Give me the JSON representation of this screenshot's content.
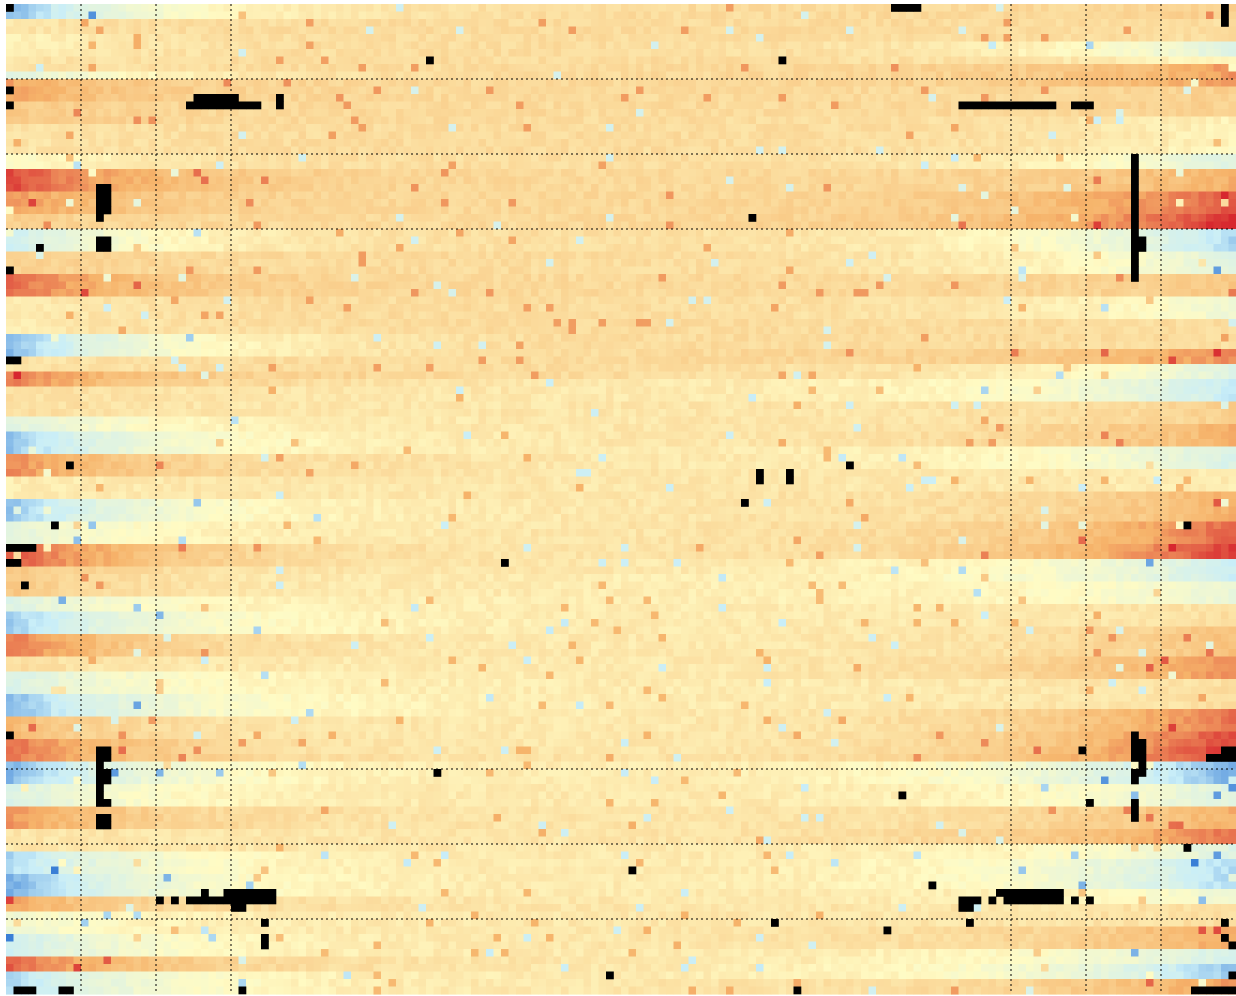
{
  "chart_data": {
    "type": "heatmap",
    "title": "",
    "xlabel": "",
    "ylabel": "",
    "grid": true,
    "legend": "none",
    "colormap": {
      "name": "diverging",
      "low": "#3a7fd6",
      "low_mid": "#c9eef8",
      "mid": "#fffbc4",
      "high_mid": "#f6b36a",
      "high": "#d7282f",
      "missing": "#000000"
    },
    "guide_line_color": "#000000",
    "columns": 164,
    "rows": 132,
    "value_range": [
      -1,
      1
    ],
    "vertical_guides_columns": [
      10,
      20,
      30,
      134,
      144,
      154
    ],
    "horizontal_guides_rows": [
      10,
      20,
      30,
      102,
      112,
      122
    ],
    "horizontal_bands": [
      {
        "rows": [
          0,
          1
        ],
        "value": -0.75
      },
      {
        "rows": [
          2,
          3
        ],
        "value": 0.15
      },
      {
        "rows": [
          4,
          6
        ],
        "value": 0.05
      },
      {
        "rows": [
          7,
          8
        ],
        "value": 0.15
      },
      {
        "rows": [
          9,
          9
        ],
        "value": -0.3
      },
      {
        "rows": [
          10,
          12
        ],
        "value": 0.55
      },
      {
        "rows": [
          13,
          15
        ],
        "value": 0.35
      },
      {
        "rows": [
          16,
          19
        ],
        "value": 0.15
      },
      {
        "rows": [
          20,
          21
        ],
        "value": -0.05
      },
      {
        "rows": [
          22,
          24
        ],
        "value": 0.9
      },
      {
        "rows": [
          25,
          27
        ],
        "value": 0.6
      },
      {
        "rows": [
          28,
          29
        ],
        "value": 0.3
      },
      {
        "rows": [
          30,
          32
        ],
        "value": -0.45
      },
      {
        "rows": [
          33,
          35
        ],
        "value": 0.3
      },
      {
        "rows": [
          36,
          38
        ],
        "value": 0.75
      },
      {
        "rows": [
          39,
          43
        ],
        "value": 0.1
      },
      {
        "rows": [
          44,
          46
        ],
        "value": -0.75
      },
      {
        "rows": [
          47,
          48
        ],
        "value": 0.15
      },
      {
        "rows": [
          49,
          50
        ],
        "value": 0.7
      },
      {
        "rows": [
          51,
          54
        ],
        "value": 0.2
      },
      {
        "rows": [
          55,
          56
        ],
        "value": -0.3
      },
      {
        "rows": [
          57,
          59
        ],
        "value": -0.7
      },
      {
        "rows": [
          60,
          62
        ],
        "value": 0.65
      },
      {
        "rows": [
          63,
          65
        ],
        "value": 0.1
      },
      {
        "rows": [
          66,
          68
        ],
        "value": -0.7
      },
      {
        "rows": [
          69,
          71
        ],
        "value": -0.25
      },
      {
        "rows": [
          72,
          74
        ],
        "value": 0.85
      },
      {
        "rows": [
          75,
          78
        ],
        "value": 0.35
      },
      {
        "rows": [
          79,
          80
        ],
        "value": -0.3
      },
      {
        "rows": [
          81,
          83
        ],
        "value": -0.65
      },
      {
        "rows": [
          84,
          86
        ],
        "value": 0.7
      },
      {
        "rows": [
          87,
          88
        ],
        "value": 0.2
      },
      {
        "rows": [
          89,
          91
        ],
        "value": -0.35
      },
      {
        "rows": [
          92,
          94
        ],
        "value": -0.75
      },
      {
        "rows": [
          95,
          97
        ],
        "value": 0.45
      },
      {
        "rows": [
          98,
          100
        ],
        "value": 0.75
      },
      {
        "rows": [
          101,
          103
        ],
        "value": -0.75
      },
      {
        "rows": [
          104,
          106
        ],
        "value": -0.35
      },
      {
        "rows": [
          107,
          109
        ],
        "value": 0.6
      },
      {
        "rows": [
          110,
          112
        ],
        "value": 0.15
      },
      {
        "rows": [
          113,
          115
        ],
        "value": -0.6
      },
      {
        "rows": [
          116,
          118
        ],
        "value": -0.8
      },
      {
        "rows": [
          119,
          120
        ],
        "value": 0.55
      },
      {
        "rows": [
          121,
          123
        ],
        "value": -0.15
      },
      {
        "rows": [
          124,
          126
        ],
        "value": -0.45
      },
      {
        "rows": [
          127,
          128
        ],
        "value": 0.8
      },
      {
        "rows": [
          129,
          131
        ],
        "value": -0.6
      }
    ],
    "right_edge_bands": [
      {
        "rows": [
          0,
          1
        ],
        "value": 0.3
      },
      {
        "rows": [
          2,
          4
        ],
        "value": 0.2
      },
      {
        "rows": [
          5,
          6
        ],
        "value": -0.3
      },
      {
        "rows": [
          8,
          10
        ],
        "value": 0.6
      },
      {
        "rows": [
          11,
          14
        ],
        "value": 0.3
      },
      {
        "rows": [
          15,
          18
        ],
        "value": 0.05
      },
      {
        "rows": [
          20,
          21
        ],
        "value": -0.3
      },
      {
        "rows": [
          22,
          24
        ],
        "value": 0.5
      },
      {
        "rows": [
          25,
          27
        ],
        "value": 0.85
      },
      {
        "rows": [
          28,
          29
        ],
        "value": 1.0
      },
      {
        "rows": [
          30,
          32
        ],
        "value": -0.6
      },
      {
        "rows": [
          33,
          35
        ],
        "value": -0.3
      },
      {
        "rows": [
          36,
          38
        ],
        "value": 0.35
      },
      {
        "rows": [
          39,
          41
        ],
        "value": -0.15
      },
      {
        "rows": [
          42,
          45
        ],
        "value": 0.2
      },
      {
        "rows": [
          46,
          47
        ],
        "value": 0.65
      },
      {
        "rows": [
          48,
          49
        ],
        "value": -0.3
      },
      {
        "rows": [
          50,
          52
        ],
        "value": -0.5
      },
      {
        "rows": [
          53,
          55
        ],
        "value": 0.3
      },
      {
        "rows": [
          56,
          58
        ],
        "value": 0.5
      },
      {
        "rows": [
          59,
          61
        ],
        "value": -0.35
      },
      {
        "rows": [
          62,
          64
        ],
        "value": 0.1
      },
      {
        "rows": [
          65,
          68
        ],
        "value": 0.5
      },
      {
        "rows": [
          69,
          71
        ],
        "value": 0.8
      },
      {
        "rows": [
          72,
          73
        ],
        "value": 0.95
      },
      {
        "rows": [
          74,
          76
        ],
        "value": -0.45
      },
      {
        "rows": [
          77,
          79
        ],
        "value": -0.2
      },
      {
        "rows": [
          80,
          82
        ],
        "value": 0.2
      },
      {
        "rows": [
          83,
          86
        ],
        "value": 0.4
      },
      {
        "rows": [
          87,
          89
        ],
        "value": 0.65
      },
      {
        "rows": [
          90,
          93
        ],
        "value": 0.2
      },
      {
        "rows": [
          94,
          96
        ],
        "value": 0.75
      },
      {
        "rows": [
          97,
          98
        ],
        "value": 0.9
      },
      {
        "rows": [
          99,
          100
        ],
        "value": 1.0
      },
      {
        "rows": [
          101,
          103
        ],
        "value": -0.8
      },
      {
        "rows": [
          104,
          106
        ],
        "value": -0.3
      },
      {
        "rows": [
          107,
          109
        ],
        "value": 0.5
      },
      {
        "rows": [
          110,
          111
        ],
        "value": 0.75
      },
      {
        "rows": [
          112,
          113
        ],
        "value": -0.3
      },
      {
        "rows": [
          114,
          117
        ],
        "value": -0.6
      },
      {
        "rows": [
          118,
          119
        ],
        "value": -0.15
      },
      {
        "rows": [
          120,
          122
        ],
        "value": 0.2
      },
      {
        "rows": [
          123,
          125
        ],
        "value": 0.55
      },
      {
        "rows": [
          126,
          127
        ],
        "value": -0.4
      },
      {
        "rows": [
          128,
          129
        ],
        "value": -0.7
      },
      {
        "rows": [
          130,
          131
        ],
        "value": 0.6
      }
    ],
    "missing_cells": [
      [
        0,
        0
      ],
      [
        0,
        118
      ],
      [
        0,
        119
      ],
      [
        0,
        120
      ],
      [
        0,
        121
      ],
      [
        0,
        162
      ],
      [
        1,
        162
      ],
      [
        2,
        162
      ],
      [
        7,
        56
      ],
      [
        7,
        103
      ],
      [
        11,
        0
      ],
      [
        12,
        25
      ],
      [
        12,
        26
      ],
      [
        12,
        27
      ],
      [
        12,
        28
      ],
      [
        12,
        29
      ],
      [
        12,
        30
      ],
      [
        12,
        36
      ],
      [
        13,
        0
      ],
      [
        13,
        24
      ],
      [
        13,
        25
      ],
      [
        13,
        26
      ],
      [
        13,
        27
      ],
      [
        13,
        28
      ],
      [
        13,
        29
      ],
      [
        13,
        30
      ],
      [
        13,
        31
      ],
      [
        13,
        32
      ],
      [
        13,
        33
      ],
      [
        13,
        36
      ],
      [
        13,
        127
      ],
      [
        13,
        128
      ],
      [
        13,
        129
      ],
      [
        13,
        130
      ],
      [
        13,
        131
      ],
      [
        13,
        132
      ],
      [
        13,
        133
      ],
      [
        13,
        134
      ],
      [
        13,
        135
      ],
      [
        13,
        136
      ],
      [
        13,
        137
      ],
      [
        13,
        138
      ],
      [
        13,
        139
      ],
      [
        13,
        142
      ],
      [
        13,
        143
      ],
      [
        13,
        144
      ],
      [
        20,
        150
      ],
      [
        21,
        150
      ],
      [
        22,
        150
      ],
      [
        23,
        150
      ],
      [
        24,
        150
      ],
      [
        24,
        12
      ],
      [
        24,
        13
      ],
      [
        25,
        12
      ],
      [
        25,
        13
      ],
      [
        25,
        150
      ],
      [
        26,
        12
      ],
      [
        26,
        13
      ],
      [
        26,
        150
      ],
      [
        27,
        12
      ],
      [
        27,
        13
      ],
      [
        27,
        150
      ],
      [
        28,
        12
      ],
      [
        28,
        99
      ],
      [
        28,
        150
      ],
      [
        29,
        150
      ],
      [
        30,
        150
      ],
      [
        31,
        12
      ],
      [
        31,
        13
      ],
      [
        31,
        150
      ],
      [
        31,
        151
      ],
      [
        32,
        4
      ],
      [
        32,
        12
      ],
      [
        32,
        13
      ],
      [
        32,
        150
      ],
      [
        32,
        151
      ],
      [
        33,
        150
      ],
      [
        34,
        150
      ],
      [
        35,
        0
      ],
      [
        35,
        150
      ],
      [
        36,
        150
      ],
      [
        47,
        0
      ],
      [
        47,
        1
      ],
      [
        61,
        8
      ],
      [
        61,
        112
      ],
      [
        62,
        100
      ],
      [
        62,
        104
      ],
      [
        63,
        100
      ],
      [
        63,
        104
      ],
      [
        66,
        98
      ],
      [
        69,
        6
      ],
      [
        69,
        157
      ],
      [
        72,
        0
      ],
      [
        72,
        1
      ],
      [
        72,
        2
      ],
      [
        72,
        3
      ],
      [
        74,
        0
      ],
      [
        74,
        1
      ],
      [
        74,
        66
      ],
      [
        77,
        2
      ],
      [
        97,
        0
      ],
      [
        97,
        150
      ],
      [
        98,
        150
      ],
      [
        98,
        151
      ],
      [
        99,
        12
      ],
      [
        99,
        13
      ],
      [
        99,
        143
      ],
      [
        99,
        150
      ],
      [
        99,
        151
      ],
      [
        99,
        162
      ],
      [
        99,
        163
      ],
      [
        100,
        12
      ],
      [
        100,
        13
      ],
      [
        100,
        150
      ],
      [
        100,
        151
      ],
      [
        100,
        160
      ],
      [
        100,
        161
      ],
      [
        100,
        162
      ],
      [
        100,
        163
      ],
      [
        101,
        12
      ],
      [
        101,
        151
      ],
      [
        102,
        12
      ],
      [
        102,
        13
      ],
      [
        102,
        57
      ],
      [
        102,
        150
      ],
      [
        102,
        151
      ],
      [
        103,
        12
      ],
      [
        103,
        13
      ],
      [
        103,
        150
      ],
      [
        104,
        12
      ],
      [
        105,
        12
      ],
      [
        105,
        119
      ],
      [
        106,
        12
      ],
      [
        106,
        13
      ],
      [
        106,
        144
      ],
      [
        106,
        150
      ],
      [
        107,
        150
      ],
      [
        108,
        12
      ],
      [
        108,
        13
      ],
      [
        108,
        150
      ],
      [
        109,
        12
      ],
      [
        109,
        13
      ],
      [
        112,
        157
      ],
      [
        115,
        83
      ],
      [
        117,
        123
      ],
      [
        118,
        26
      ],
      [
        118,
        29
      ],
      [
        118,
        30
      ],
      [
        118,
        31
      ],
      [
        118,
        32
      ],
      [
        118,
        33
      ],
      [
        118,
        34
      ],
      [
        118,
        35
      ],
      [
        118,
        132
      ],
      [
        118,
        133
      ],
      [
        118,
        134
      ],
      [
        118,
        135
      ],
      [
        118,
        136
      ],
      [
        118,
        137
      ],
      [
        118,
        138
      ],
      [
        118,
        139
      ],
      [
        118,
        140
      ],
      [
        119,
        20
      ],
      [
        119,
        22
      ],
      [
        119,
        24
      ],
      [
        119,
        25
      ],
      [
        119,
        26
      ],
      [
        119,
        27
      ],
      [
        119,
        28
      ],
      [
        119,
        29
      ],
      [
        119,
        30
      ],
      [
        119,
        31
      ],
      [
        119,
        32
      ],
      [
        119,
        33
      ],
      [
        119,
        34
      ],
      [
        119,
        35
      ],
      [
        119,
        127
      ],
      [
        119,
        128
      ],
      [
        119,
        129
      ],
      [
        119,
        131
      ],
      [
        119,
        133
      ],
      [
        119,
        134
      ],
      [
        119,
        135
      ],
      [
        119,
        136
      ],
      [
        119,
        137
      ],
      [
        119,
        138
      ],
      [
        119,
        139
      ],
      [
        119,
        140
      ],
      [
        119,
        142
      ],
      [
        119,
        144
      ],
      [
        120,
        30
      ],
      [
        120,
        31
      ],
      [
        120,
        127
      ],
      [
        120,
        128
      ],
      [
        122,
        34
      ],
      [
        122,
        102
      ],
      [
        122,
        128
      ],
      [
        122,
        162
      ],
      [
        123,
        117
      ],
      [
        124,
        34
      ],
      [
        124,
        162
      ],
      [
        125,
        34
      ],
      [
        125,
        163
      ],
      [
        129,
        80
      ],
      [
        129,
        163
      ],
      [
        131,
        1
      ],
      [
        131,
        2
      ],
      [
        131,
        3
      ],
      [
        131,
        7
      ],
      [
        131,
        8
      ],
      [
        131,
        31
      ],
      [
        131,
        105
      ],
      [
        131,
        158
      ],
      [
        131,
        159
      ],
      [
        131,
        160
      ],
      [
        131,
        161
      ],
      [
        131,
        162
      ],
      [
        131,
        163
      ]
    ]
  }
}
